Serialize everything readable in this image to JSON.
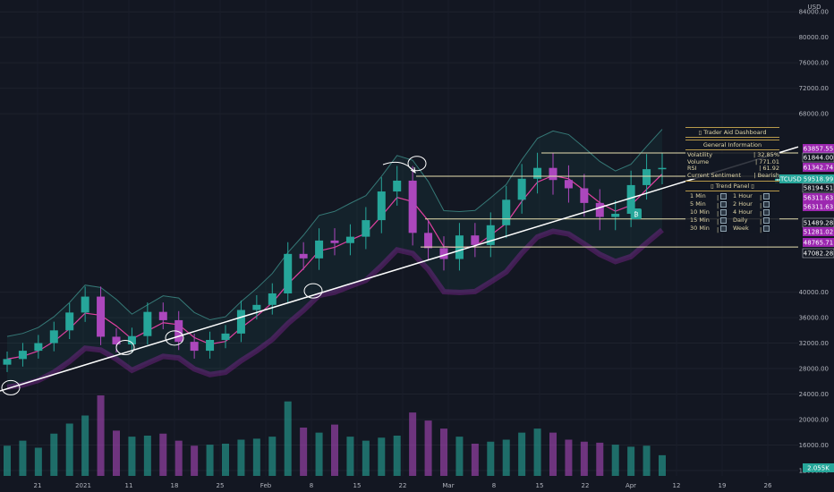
{
  "currency": "USD",
  "y_axis_labels": [
    "88000.00",
    "84000.00",
    "80000.00",
    "76000.00",
    "72000.00",
    "68000.00",
    "40000.00",
    "36000.00",
    "32000.00",
    "28000.00",
    "24000.00",
    "20000.00",
    "16000.00",
    "12000.00"
  ],
  "x_axis_labels": [
    "21",
    "2021",
    "11",
    "18",
    "25",
    "Feb",
    "8",
    "15",
    "22",
    "Mar",
    "8",
    "15",
    "22",
    "Apr",
    "12",
    "19",
    "26"
  ],
  "price_tags": [
    {
      "label": "63857.55",
      "color": "#9c27b0"
    },
    {
      "label": "61844.00",
      "color": "#131722"
    },
    {
      "label": "61342.74",
      "color": "#9c27b0"
    },
    {
      "label": "BTCUSD",
      "color": "#26a69a"
    },
    {
      "label": "59518.99",
      "color": "#26a69a"
    },
    {
      "label": "58194.51",
      "color": "#131722"
    },
    {
      "label": "56311.63",
      "color": "#9c27b0"
    },
    {
      "label": "56311.63",
      "color": "#9c27b0"
    },
    {
      "label": "51489.28",
      "color": "#131722"
    },
    {
      "label": "51281.02",
      "color": "#9c27b0"
    },
    {
      "label": "48765.71",
      "color": "#9c27b0"
    },
    {
      "label": "47082.28",
      "color": "#131722"
    },
    {
      "label": "2.055K",
      "color": "#26a69a"
    }
  ],
  "dashboard": {
    "title": "Trader Aid Dashboard",
    "general_header": "General Information",
    "rows": [
      {
        "key": "Volatility",
        "value": "| 32.85%"
      },
      {
        "key": "Volume",
        "value": "| 771.01"
      },
      {
        "key": "RSI",
        "value": "| 61.92"
      },
      {
        "key": "Current Sentiment",
        "value": "| Bearish"
      }
    ],
    "trend_header": "Trend Panel",
    "trend_rows": [
      [
        "1 Min",
        "1 Hour"
      ],
      [
        "5 Min",
        "2 Hour"
      ],
      [
        "10 Min",
        "4 Hour"
      ],
      [
        "15 Min",
        "Daily"
      ],
      [
        "30 Min",
        "Week"
      ]
    ]
  },
  "chart_data": {
    "type": "candlestick",
    "symbol": "BTCUSD",
    "y_range": [
      10000,
      90000
    ],
    "last_price": 59518.99,
    "horizontal_levels": [
      61844.0,
      58194.51,
      51489.28,
      47082.28
    ],
    "closes": [
      29500,
      30800,
      32000,
      34000,
      36800,
      39300,
      33000,
      31800,
      33100,
      36900,
      35600,
      32200,
      30800,
      32500,
      33500,
      37200,
      38000,
      39800,
      46000,
      45300,
      48100,
      47700,
      48700,
      51300,
      55800,
      57500,
      49300,
      46900,
      45200,
      48900,
      47400,
      50500,
      54500,
      57800,
      59500,
      57600,
      56300,
      54000,
      51800,
      52300,
      56800,
      59300,
      59500
    ],
    "volumes": [
      3000,
      3500,
      2800,
      4200,
      5200,
      6000,
      8000,
      4500,
      3900,
      4000,
      4200,
      3500,
      3000,
      3100,
      3200,
      3600,
      3700,
      3900,
      7400,
      4800,
      4300,
      5100,
      3900,
      3500,
      3800,
      4000,
      6300,
      5500,
      4700,
      3900,
      3200,
      3400,
      3600,
      4300,
      4700,
      4300,
      3600,
      3400,
      3300,
      3100,
      2900,
      3000,
      2055
    ]
  }
}
